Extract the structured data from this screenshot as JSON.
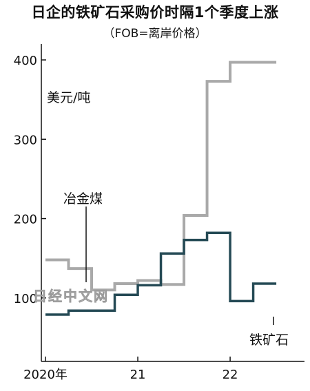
{
  "title": "日企的铁矿石采购价时隔1个季度上涨",
  "subtitle": "（FOB=离岸价格）",
  "watermark": "日经中文网",
  "chart_data": {
    "type": "line",
    "step": true,
    "unit": "美元/吨",
    "ylim": [
      20,
      420
    ],
    "yticks": [
      100,
      200,
      300,
      400
    ],
    "xlim": [
      0,
      11.4
    ],
    "xticks": [
      {
        "label": "2020年",
        "x": 0
      },
      {
        "label": "21",
        "x": 4
      },
      {
        "label": "22",
        "x": 8
      }
    ],
    "grid": false,
    "series": [
      {
        "name": "冶金煤",
        "color": "#a9a9a9",
        "x": [
          0,
          1,
          2,
          3,
          4,
          5,
          6,
          7,
          8,
          9
        ],
        "y": [
          148,
          137,
          110,
          118,
          122,
          117,
          204,
          373,
          397,
          397
        ]
      },
      {
        "name": "铁矿石",
        "color": "#254a55",
        "x": [
          0,
          1,
          2,
          3,
          4,
          5,
          6,
          7,
          8,
          9
        ],
        "y": [
          79,
          84,
          84,
          104,
          116,
          156,
          173,
          182,
          96,
          118
        ]
      }
    ],
    "labels": {
      "coal": "冶金煤",
      "iron": "铁矿石"
    }
  }
}
